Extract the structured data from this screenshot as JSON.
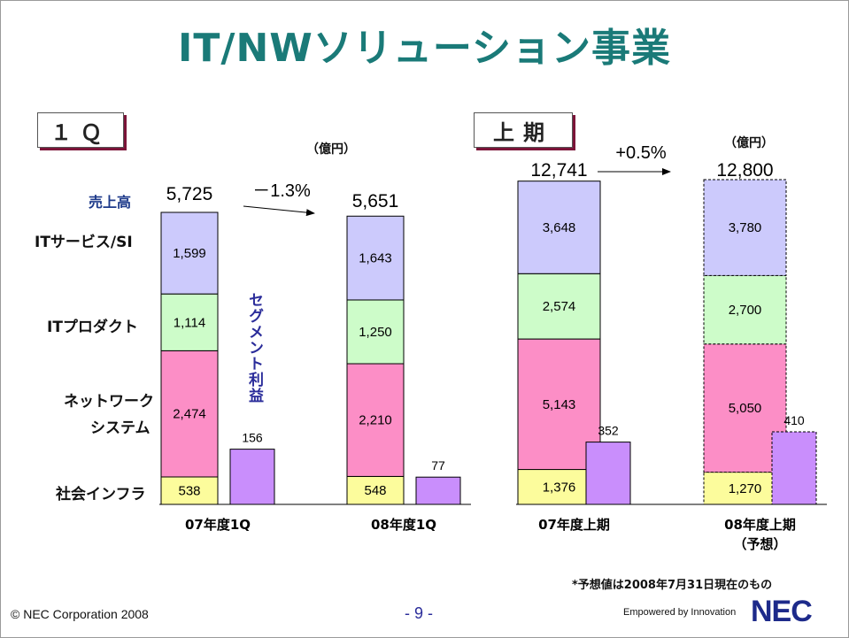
{
  "title": "IT/NWソリューション事業",
  "panels": [
    {
      "label": "１Ｑ",
      "unit": "（億円）"
    },
    {
      "label": "上期",
      "unit": "（億円）"
    }
  ],
  "row_labels": {
    "revenue": "売上高",
    "it_services": "ITサービス/SI",
    "it_products": "ITプロダクト",
    "network_1": "ネットワーク",
    "network_2": "システム",
    "social_infra": "社会インフラ",
    "segment_profit": "セグメント利益"
  },
  "footnote": "*予想値は2008年7月31日現在のもの",
  "footer": {
    "copyright": "© NEC Corporation 2008",
    "page": "- 9 -",
    "tagline": "Empowered by Innovation",
    "logo": "NEC"
  },
  "colors": {
    "it_services": "#cccafc",
    "it_products": "#cdfcc9",
    "network": "#fc8ec6",
    "social_infra": "#fcfc9c",
    "profit": "#c98efc",
    "title": "#1a7a78"
  },
  "chart_data": [
    {
      "type": "bar",
      "stacked": true,
      "title": "１Ｑ",
      "unit": "（億円）",
      "categories": [
        "07年度1Q",
        "08年度1Q"
      ],
      "series": [
        {
          "name": "社会インフラ",
          "values": [
            538,
            548
          ]
        },
        {
          "name": "ネットワークシステム",
          "values": [
            2474,
            2210
          ]
        },
        {
          "name": "ITプロダクト",
          "values": [
            1114,
            1250
          ]
        },
        {
          "name": "ITサービス/SI",
          "values": [
            1599,
            1643
          ]
        }
      ],
      "totals": [
        "5,725",
        "5,651"
      ],
      "segment_profit": [
        156,
        77
      ],
      "growth": "－1.3%",
      "value_labels": {
        "social_infra": [
          "538",
          "548"
        ],
        "network": [
          "2,474",
          "2,210"
        ],
        "it_products": [
          "1,114",
          "1,250"
        ],
        "it_services": [
          "1,599",
          "1,643"
        ],
        "profit": [
          "156",
          "77"
        ]
      }
    },
    {
      "type": "bar",
      "stacked": true,
      "title": "上期",
      "unit": "（億円）",
      "categories": [
        "07年度上期",
        "08年度上期"
      ],
      "category_notes": [
        "",
        "（予想）"
      ],
      "forecast": [
        false,
        true
      ],
      "series": [
        {
          "name": "社会インフラ",
          "values": [
            1376,
            1270
          ]
        },
        {
          "name": "ネットワークシステム",
          "values": [
            5143,
            5050
          ]
        },
        {
          "name": "ITプロダクト",
          "values": [
            2574,
            2700
          ]
        },
        {
          "name": "ITサービス/SI",
          "values": [
            3648,
            3780
          ]
        }
      ],
      "totals": [
        "12,741",
        "12,800"
      ],
      "segment_profit": [
        352,
        410
      ],
      "growth": "+0.5%",
      "value_labels": {
        "social_infra": [
          "1,376",
          "1,270"
        ],
        "network": [
          "5,143",
          "5,050"
        ],
        "it_products": [
          "2,574",
          "2,700"
        ],
        "it_services": [
          "3,648",
          "3,780"
        ],
        "profit": [
          "352",
          "410"
        ]
      }
    }
  ]
}
